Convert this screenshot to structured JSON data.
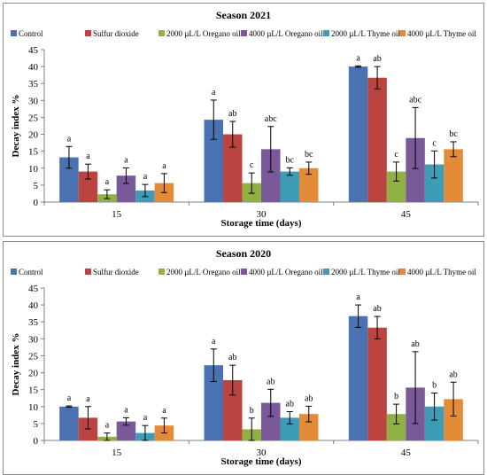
{
  "chart_data": [
    {
      "type": "bar",
      "title": "Season 2021",
      "xlabel": "Storage time (days)",
      "ylabel": "Decay index %",
      "ylim": [
        0,
        45
      ],
      "yticks": [
        0,
        5,
        10,
        15,
        20,
        25,
        30,
        35,
        40,
        45
      ],
      "categories": [
        "15",
        "30",
        "45"
      ],
      "legend_position": "top",
      "grid": false,
      "series": [
        {
          "name": "Control",
          "color": "#4a72b0",
          "values": [
            13.2,
            24.3,
            40.0
          ],
          "errors": [
            3.2,
            5.8,
            0.2
          ],
          "letters": [
            "a",
            "a",
            "a"
          ]
        },
        {
          "name": "Sulfur dioxide",
          "color": "#bb4441",
          "values": [
            9.0,
            20.0,
            36.7
          ],
          "errors": [
            2.2,
            3.8,
            3.3
          ],
          "letters": [
            "a",
            "ab",
            "ab"
          ]
        },
        {
          "name": "2000 µL/L Oregano oil",
          "color": "#90b043",
          "values": [
            2.3,
            5.6,
            9.0
          ],
          "errors": [
            1.3,
            3.0,
            2.8
          ],
          "letters": [
            "a",
            "c",
            "c"
          ]
        },
        {
          "name": "4000 µL/L Oregano oil",
          "color": "#7a5999",
          "values": [
            7.8,
            15.6,
            18.9
          ],
          "errors": [
            2.3,
            6.7,
            9.0
          ],
          "letters": [
            "a",
            "abc",
            "abc"
          ]
        },
        {
          "name": "2000 µL/L Thyme oil",
          "color": "#3e9cb7",
          "values": [
            3.4,
            9.0,
            11.1
          ],
          "errors": [
            1.8,
            1.1,
            4.0
          ],
          "letters": [
            "a",
            "bc",
            "c"
          ]
        },
        {
          "name": "4000 µL/L Thyme oil",
          "color": "#e48b3a",
          "values": [
            5.6,
            10.0,
            15.6
          ],
          "errors": [
            2.8,
            1.8,
            2.2
          ],
          "letters": [
            "a",
            "bc",
            "bc"
          ]
        }
      ]
    },
    {
      "type": "bar",
      "title": "Season 2020",
      "xlabel": "Storage time (days)",
      "ylabel": "Decay index %",
      "ylim": [
        0,
        45
      ],
      "yticks": [
        0,
        5,
        10,
        15,
        20,
        25,
        30,
        35,
        40,
        45
      ],
      "categories": [
        "15",
        "30",
        "45"
      ],
      "legend_position": "top",
      "grid": false,
      "series": [
        {
          "name": "Control",
          "color": "#4a72b0",
          "values": [
            10.0,
            22.2,
            36.7
          ],
          "errors": [
            0.2,
            4.8,
            3.3
          ],
          "letters": [
            "a",
            "a",
            "a"
          ]
        },
        {
          "name": "Sulfur dioxide",
          "color": "#bb4441",
          "values": [
            6.7,
            17.8,
            33.3
          ],
          "errors": [
            3.3,
            4.4,
            3.3
          ],
          "letters": [
            "a",
            "ab",
            "ab"
          ]
        },
        {
          "name": "2000 µL/L Oregano oil",
          "color": "#90b043",
          "values": [
            1.1,
            3.3,
            7.8
          ],
          "errors": [
            1.1,
            3.3,
            2.9
          ],
          "letters": [
            "a",
            "b",
            "b"
          ]
        },
        {
          "name": "4000 µL/L Oregano oil",
          "color": "#7a5999",
          "values": [
            5.6,
            11.1,
            15.6
          ],
          "errors": [
            1.1,
            4.0,
            10.6
          ],
          "letters": [
            "a",
            "ab",
            "ab"
          ]
        },
        {
          "name": "2000 µL/L Thyme oil",
          "color": "#3e9cb7",
          "values": [
            2.2,
            6.7,
            10.0
          ],
          "errors": [
            2.2,
            1.8,
            4.0
          ],
          "letters": [
            "a",
            "ab",
            "b"
          ]
        },
        {
          "name": "4000 µL/L Thyme oil",
          "color": "#e48b3a",
          "values": [
            4.4,
            7.8,
            12.2
          ],
          "errors": [
            2.2,
            2.3,
            5.0
          ],
          "letters": [
            "a",
            "ab",
            "ab"
          ]
        }
      ]
    }
  ]
}
